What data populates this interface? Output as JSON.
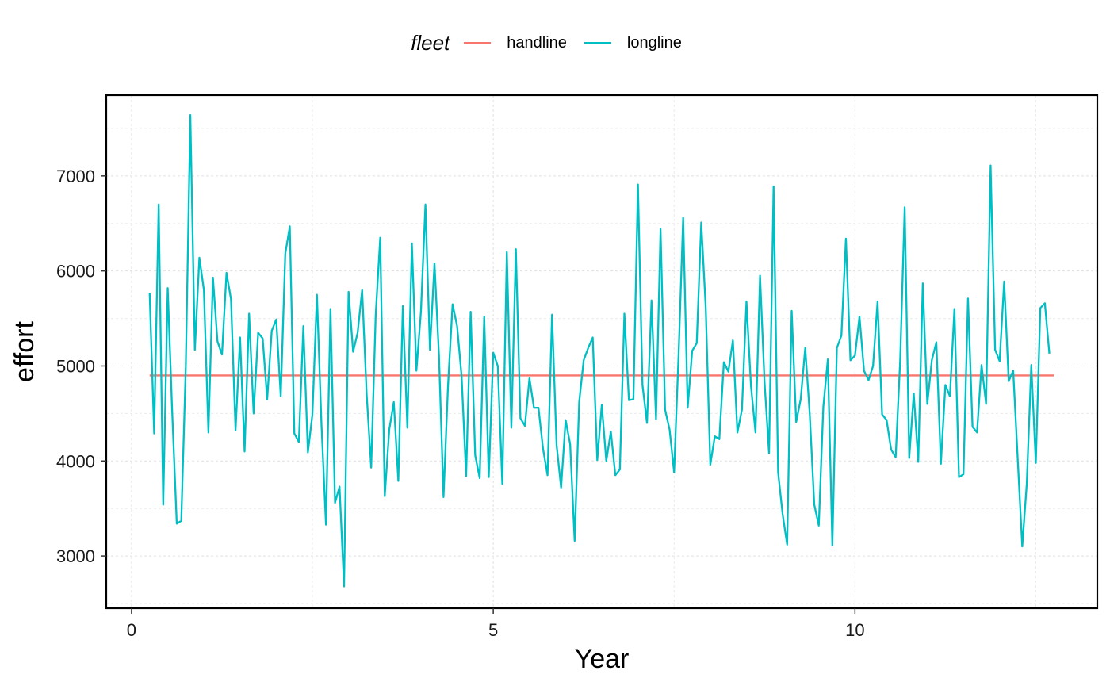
{
  "legend": {
    "title": "fleet",
    "items": [
      {
        "label": "handline",
        "color": "#F8766D"
      },
      {
        "label": "longline",
        "color": "#00BFC4"
      }
    ]
  },
  "chart_data": {
    "type": "line",
    "xlabel": "Year",
    "ylabel": "effort",
    "xlim": [
      -0.35,
      13.35
    ],
    "ylim": [
      2450,
      7850
    ],
    "x_ticks": [
      0,
      5,
      10
    ],
    "x_tick_labels": [
      "0",
      "5",
      "10"
    ],
    "y_ticks": [
      3000,
      4000,
      5000,
      6000,
      7000
    ],
    "y_tick_labels": [
      "3000",
      "4000",
      "5000",
      "6000",
      "7000"
    ],
    "grid": true,
    "legend_position": "top",
    "series": [
      {
        "name": "handline",
        "color": "#F8766D",
        "x": [
          0.25,
          12.75
        ],
        "y": [
          4900,
          4900
        ]
      },
      {
        "name": "longline",
        "color": "#00BFC4",
        "x_start": 0.25,
        "x_step": 0.0625,
        "y": [
          5770,
          4290,
          6700,
          3540,
          5820,
          4500,
          3340,
          3370,
          5000,
          7640,
          5170,
          6140,
          5800,
          4300,
          5930,
          5260,
          5120,
          5980,
          5700,
          4320,
          5300,
          4100,
          5550,
          4500,
          5350,
          5290,
          4650,
          5370,
          5490,
          4680,
          6180,
          6470,
          4290,
          4200,
          5420,
          4090,
          4490,
          5750,
          4390,
          3330,
          5600,
          3560,
          3730,
          2680,
          5780,
          5150,
          5350,
          5800,
          4700,
          3930,
          5540,
          6350,
          3630,
          4330,
          4620,
          3790,
          5630,
          4350,
          6290,
          4950,
          5570,
          6700,
          5170,
          6080,
          5100,
          3620,
          4800,
          5650,
          5420,
          4890,
          3840,
          5570,
          4060,
          3820,
          5520,
          3830,
          5140,
          5000,
          3760,
          6200,
          4350,
          6230,
          4450,
          4370,
          4870,
          4560,
          4560,
          4130,
          3850,
          5540,
          4170,
          3720,
          4430,
          4180,
          3160,
          4620,
          5060,
          5190,
          5300,
          4010,
          4590,
          4000,
          4310,
          3850,
          3910,
          5550,
          4640,
          4650,
          6910,
          4800,
          4400,
          5690,
          4440,
          6440,
          4540,
          4330,
          3880,
          5130,
          6560,
          4560,
          5160,
          5240,
          6510,
          5610,
          3960,
          4260,
          4230,
          5040,
          4940,
          5270,
          4300,
          4540,
          5680,
          4790,
          4300,
          5950,
          4830,
          4080,
          6890,
          3880,
          3440,
          3120,
          5580,
          4410,
          4650,
          5190,
          4490,
          3540,
          3320,
          4570,
          5070,
          3110,
          5190,
          5320,
          6340,
          5060,
          5110,
          5520,
          4950,
          4850,
          5000,
          5680,
          4490,
          4430,
          4120,
          4040,
          5060,
          6670,
          4030,
          4710,
          3990,
          5870,
          4600,
          5060,
          5250,
          3970,
          4800,
          4680,
          5600,
          3830,
          3860,
          5710,
          4360,
          4300,
          5010,
          4600,
          7110,
          5170,
          5050,
          5890,
          4840,
          4950,
          4020,
          3100,
          3760,
          5010,
          3980,
          5610,
          5660,
          5130
        ]
      }
    ]
  }
}
